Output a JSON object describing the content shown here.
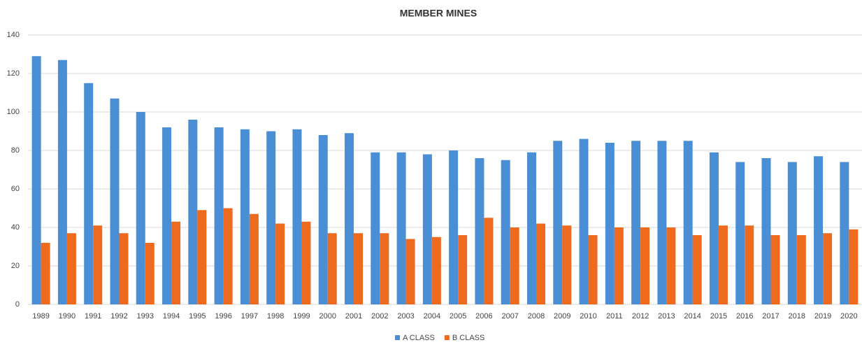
{
  "chart_data": {
    "type": "bar",
    "title": "MEMBER MINES",
    "categories": [
      "1989",
      "1990",
      "1991",
      "1992",
      "1993",
      "1994",
      "1995",
      "1996",
      "1997",
      "1998",
      "1999",
      "2000",
      "2001",
      "2002",
      "2003",
      "2004",
      "2005",
      "2006",
      "2007",
      "2008",
      "2009",
      "2010",
      "2011",
      "2012",
      "2013",
      "2014",
      "2015",
      "2016",
      "2017",
      "2018",
      "2019",
      "2020"
    ],
    "series": [
      {
        "name": "A CLASS",
        "color": "#4a8fd6",
        "values": [
          129,
          127,
          115,
          107,
          100,
          92,
          96,
          92,
          91,
          90,
          91,
          88,
          89,
          79,
          79,
          78,
          80,
          76,
          75,
          79,
          85,
          86,
          84,
          85,
          85,
          85,
          79,
          74,
          76,
          74,
          77,
          74
        ]
      },
      {
        "name": "B CLASS",
        "color": "#ee6a1f",
        "values": [
          32,
          37,
          41,
          37,
          32,
          43,
          49,
          50,
          47,
          42,
          43,
          37,
          37,
          37,
          34,
          35,
          36,
          45,
          40,
          42,
          41,
          36,
          40,
          40,
          40,
          36,
          41,
          41,
          36,
          36,
          37,
          39
        ]
      }
    ],
    "ylim": [
      0,
      140
    ],
    "yticks": [
      0,
      20,
      40,
      60,
      80,
      100,
      120,
      140
    ],
    "grid": true,
    "legend": "bottom"
  }
}
